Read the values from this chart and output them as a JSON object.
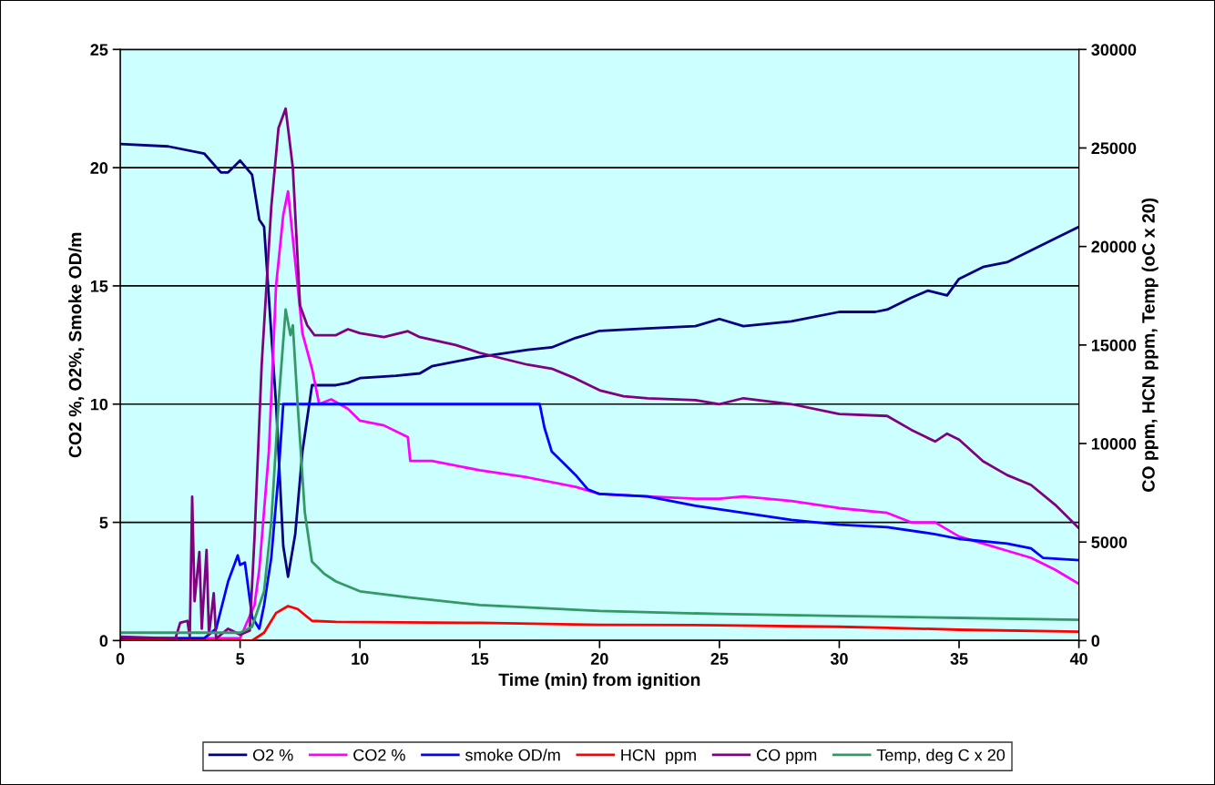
{
  "chart_data": {
    "type": "line",
    "xlabel": "Time (min) from ignition",
    "ylabel": "CO2 %, O2%, Smoke OD/m",
    "y2label": "CO ppm, HCN ppm, Temp (oC x 20)",
    "xlim": [
      0,
      40
    ],
    "xticks": [
      0,
      5,
      10,
      15,
      20,
      25,
      30,
      35,
      40
    ],
    "ylim": [
      0,
      25
    ],
    "yticks": [
      0,
      5,
      10,
      15,
      20,
      25
    ],
    "y2lim": [
      0,
      30000
    ],
    "y2ticks": [
      0,
      5000,
      10000,
      15000,
      20000,
      25000,
      30000
    ],
    "grid": "y",
    "legend": "bottom",
    "marker": "none",
    "line_style": "solid",
    "series": [
      {
        "name": "O2 %",
        "color": "#000080",
        "x": [
          0,
          2,
          3.5,
          4.2,
          4.5,
          5,
          5.5,
          5.8,
          6.0,
          6.3,
          6.5,
          6.8,
          7.0,
          7.3,
          7.6,
          8,
          9,
          9.5,
          10,
          11.5,
          12.5,
          13,
          15,
          17,
          18,
          19,
          20,
          22,
          24,
          25,
          26,
          28,
          30,
          31.5,
          32,
          33,
          33.7,
          34.5,
          35,
          36,
          37,
          38,
          39,
          40
        ],
        "values": [
          21,
          20.9,
          20.6,
          19.8,
          19.8,
          20.3,
          19.7,
          17.8,
          17.5,
          13,
          10,
          4,
          2.7,
          4.5,
          8,
          10.8,
          10.8,
          10.9,
          11.1,
          11.2,
          11.3,
          11.6,
          12.0,
          12.3,
          12.4,
          12.8,
          13.1,
          13.2,
          13.3,
          13.6,
          13.3,
          13.5,
          13.9,
          13.9,
          14.0,
          14.5,
          14.8,
          14.6,
          15.3,
          15.8,
          16.0,
          16.5,
          17.0,
          17.5
        ]
      },
      {
        "name": "CO2 %",
        "color": "#ff00ff",
        "x": [
          0,
          5,
          5.6,
          5.8,
          6.2,
          6.5,
          6.8,
          7.0,
          7.3,
          7.6,
          8.0,
          8.3,
          8.8,
          9.5,
          10,
          11,
          12,
          12.1,
          13,
          15,
          17,
          19,
          20,
          22,
          24,
          25,
          26,
          28,
          30,
          32,
          33,
          34,
          35,
          36,
          37,
          38,
          39,
          40
        ],
        "values": [
          0.1,
          0.1,
          1.5,
          3,
          8,
          15,
          18,
          19,
          16,
          13,
          11.5,
          10,
          10.2,
          9.8,
          9.3,
          9.1,
          8.6,
          7.6,
          7.6,
          7.2,
          6.9,
          6.5,
          6.2,
          6.1,
          6.0,
          6.0,
          6.1,
          5.9,
          5.6,
          5.4,
          5.0,
          5.0,
          4.4,
          4.1,
          3.8,
          3.5,
          3.0,
          2.4
        ]
      },
      {
        "name": "smoke OD/m",
        "color": "#0000ff",
        "x": [
          0,
          3.5,
          4.0,
          4.5,
          4.9,
          5.0,
          5.2,
          5.5,
          5.8,
          6.0,
          6.3,
          6.6,
          6.8,
          17.5,
          17.7,
          18,
          19,
          19.5,
          20,
          22,
          24,
          26,
          28,
          30,
          32,
          34,
          35,
          37,
          38,
          38.5,
          40
        ],
        "values": [
          0.1,
          0.1,
          0.5,
          2.5,
          3.6,
          3.2,
          3.3,
          1.0,
          0.5,
          1.5,
          3.5,
          7,
          10,
          10,
          9,
          8,
          7,
          6.4,
          6.2,
          6.1,
          5.7,
          5.4,
          5.1,
          4.9,
          4.8,
          4.5,
          4.3,
          4.1,
          3.9,
          3.5,
          3.4
        ]
      },
      {
        "name": "HCN  ppm",
        "color": "#ff0000",
        "axis": "y2",
        "x": [
          0,
          5.5,
          6.0,
          6.5,
          7.0,
          7.4,
          8.0,
          9,
          15,
          20,
          25,
          30,
          32,
          35,
          40
        ],
        "values": [
          0,
          0,
          400,
          1400,
          1750,
          1600,
          1000,
          950,
          900,
          800,
          780,
          700,
          650,
          550,
          450
        ]
      },
      {
        "name": "CO ppm",
        "color": "#800080",
        "axis": "y2",
        "x": [
          0,
          2.3,
          2.5,
          2.8,
          2.9,
          3.0,
          3.1,
          3.3,
          3.4,
          3.6,
          3.7,
          3.9,
          4.0,
          4.5,
          5.0,
          5.4,
          5.6,
          5.9,
          6.3,
          6.6,
          6.9,
          7.2,
          7.5,
          7.8,
          8.1,
          9,
          9.5,
          10,
          11,
          12,
          12.5,
          14,
          15,
          16,
          17,
          18,
          19,
          20,
          21,
          22,
          24,
          25,
          26,
          28,
          30,
          32,
          33,
          34,
          34.5,
          35,
          36,
          37,
          38,
          39,
          40
        ],
        "values": [
          200,
          100,
          900,
          1000,
          200,
          7300,
          2000,
          4500,
          600,
          4600,
          300,
          2400,
          100,
          600,
          300,
          500,
          5200,
          14000,
          22000,
          26000,
          27000,
          24000,
          17000,
          16000,
          15500,
          15500,
          15800,
          15600,
          15400,
          15700,
          15400,
          15000,
          14600,
          14300,
          14000,
          13800,
          13300,
          12700,
          12400,
          12300,
          12200,
          12000,
          12300,
          12000,
          11500,
          11400,
          10700,
          10100,
          10500,
          10200,
          9100,
          8400,
          7900,
          6900,
          5700
        ]
      },
      {
        "name": "Temp, deg C x 20",
        "color": "#339966",
        "axis": "y2",
        "x": [
          0,
          5,
          5.5,
          6.0,
          6.3,
          6.6,
          6.9,
          7.1,
          7.2,
          7.4,
          7.7,
          8.0,
          8.5,
          9,
          10,
          12,
          15,
          20,
          25,
          30,
          35,
          40
        ],
        "values": [
          400,
          400,
          700,
          2500,
          6000,
          12000,
          16800,
          15500,
          16000,
          12000,
          6500,
          4000,
          3400,
          3000,
          2500,
          2200,
          1800,
          1500,
          1350,
          1250,
          1150,
          1050
        ]
      }
    ]
  }
}
